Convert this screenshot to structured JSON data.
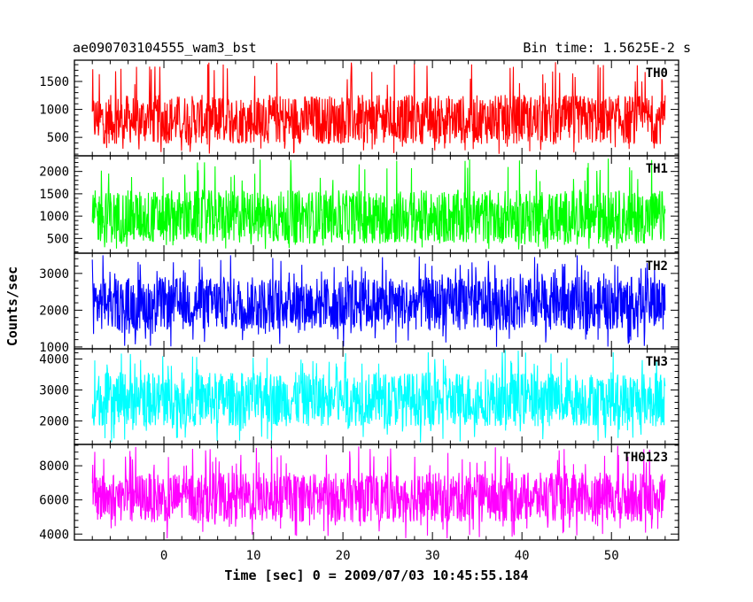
{
  "header": {
    "title": "ae090703104555_wam3_bst",
    "bin_time": "Bin time: 1.5625E-2 s"
  },
  "axes": {
    "xlabel": "Time [sec] 0 = 2009/07/03 10:45:55.184",
    "ylabel": "Counts/sec"
  },
  "chart_data": {
    "type": "line",
    "title": "ae090703104555_wam3_bst",
    "subtitle": "Bin time: 1.5625E-2 s",
    "xlabel": "Time [sec] 0 = 2009/07/03 10:45:55.184",
    "ylabel": "Counts/sec",
    "xlim": [
      -10,
      57.5
    ],
    "x_ticks": [
      0,
      10,
      20,
      30,
      40,
      50
    ],
    "x_tick_labels": [
      "0",
      "10",
      "20",
      "30",
      "40",
      "50"
    ],
    "data_range_x": [
      -8,
      56
    ],
    "bin_time_s": 0.015625,
    "grid": false,
    "panels": [
      {
        "name": "TH0",
        "color": "#ff0000",
        "ylim": [
          170,
          1880
        ],
        "y_ticks": [
          500,
          1000,
          1500
        ],
        "y_tick_labels": [
          "500",
          "1000",
          "1500"
        ],
        "mean": 820,
        "typical_range": [
          420,
          1300
        ],
        "min_approx": 200,
        "max_approx": 1850
      },
      {
        "name": "TH1",
        "color": "#00ff00",
        "ylim": [
          170,
          2350
        ],
        "y_ticks": [
          500,
          1000,
          1500,
          2000
        ],
        "y_tick_labels": [
          "500",
          "1000",
          "1500",
          "2000"
        ],
        "mean": 980,
        "typical_range": [
          450,
          1650
        ],
        "min_approx": 250,
        "max_approx": 2300
      },
      {
        "name": "TH2",
        "color": "#0000ff",
        "ylim": [
          950,
          3550
        ],
        "y_ticks": [
          1000,
          2000,
          3000
        ],
        "y_tick_labels": [
          "1000",
          "2000",
          "3000"
        ],
        "mean": 2180,
        "typical_range": [
          1500,
          2950
        ],
        "min_approx": 1000,
        "max_approx": 3500
      },
      {
        "name": "TH3",
        "color": "#00ffff",
        "ylim": [
          1240,
          4330
        ],
        "y_ticks": [
          2000,
          3000,
          4000
        ],
        "y_tick_labels": [
          "2000",
          "3000",
          "4000"
        ],
        "mean": 2700,
        "typical_range": [
          1850,
          3600
        ],
        "min_approx": 1300,
        "max_approx": 4300
      },
      {
        "name": "TH0123",
        "color": "#ff00ff",
        "ylim": [
          3650,
          9250
        ],
        "y_ticks": [
          4000,
          6000,
          8000
        ],
        "y_tick_labels": [
          "4000",
          "6000",
          "8000"
        ],
        "mean": 6150,
        "typical_range": [
          4800,
          7700
        ],
        "min_approx": 3750,
        "max_approx": 9200
      }
    ]
  }
}
